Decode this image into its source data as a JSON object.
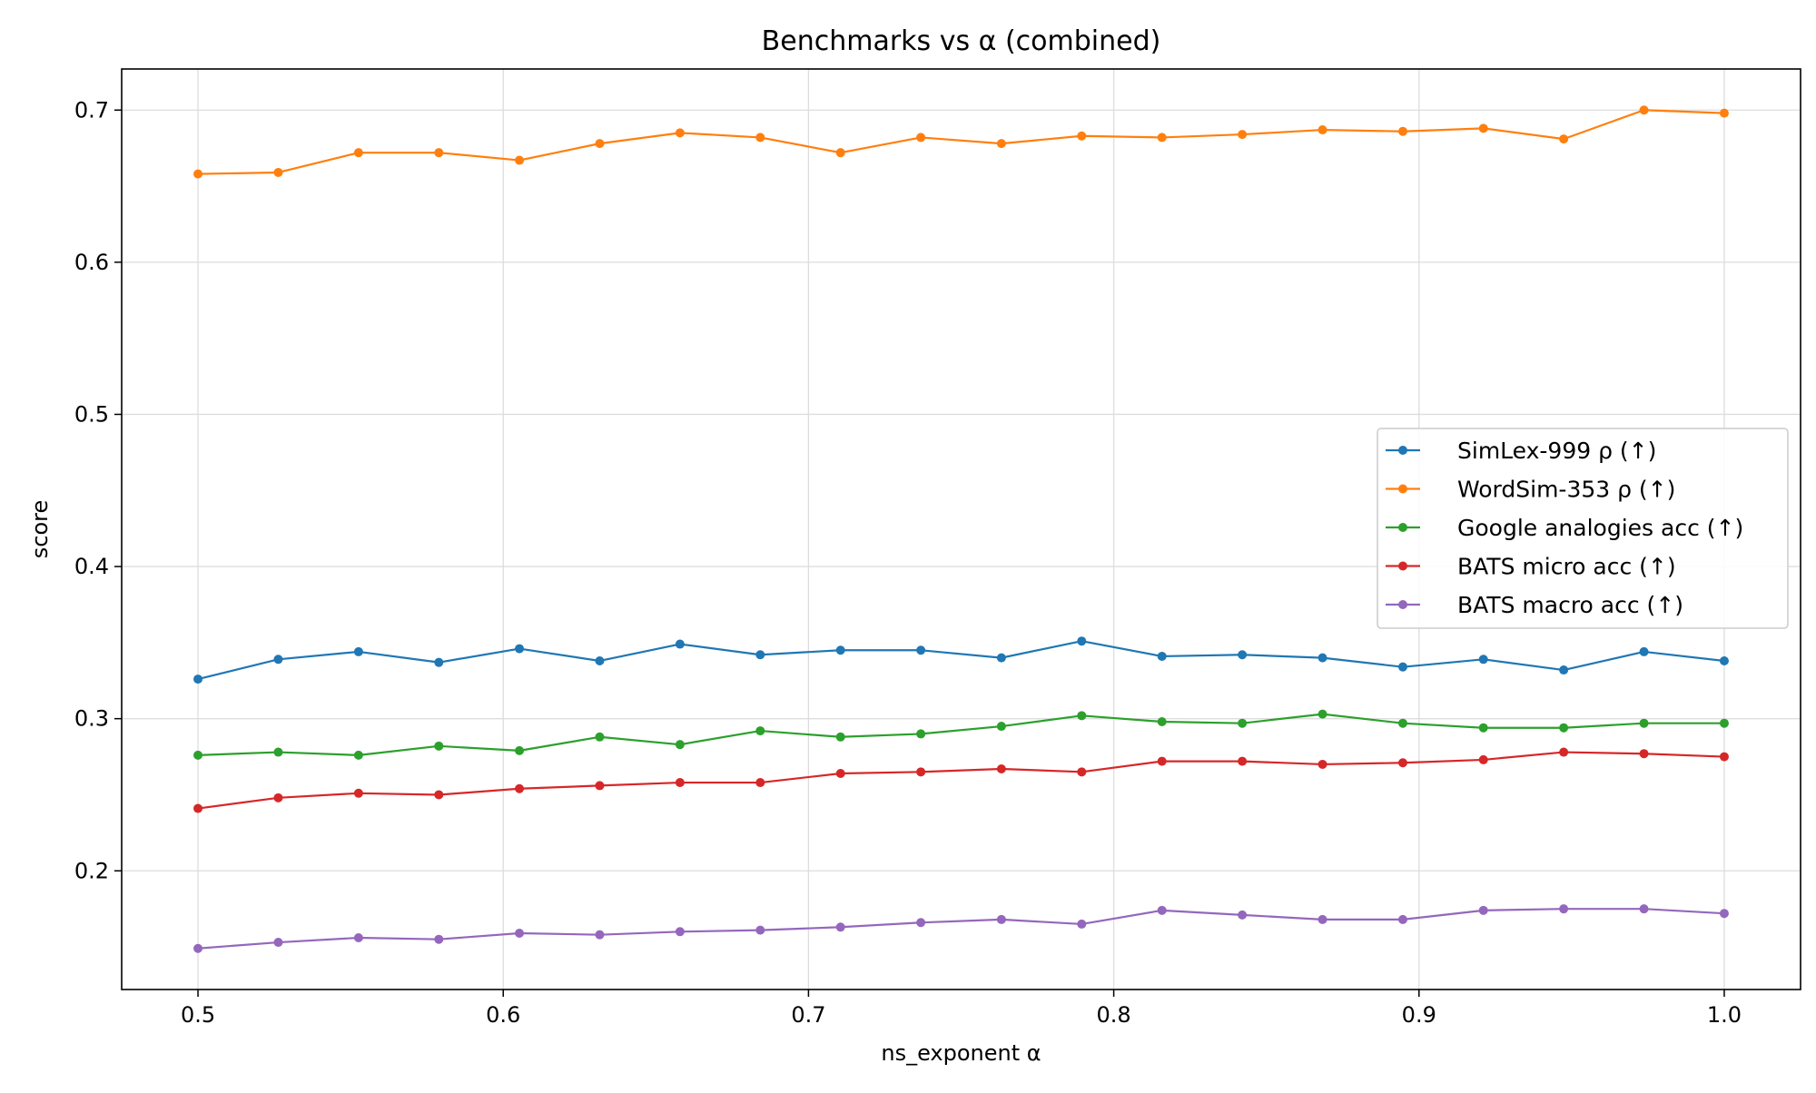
{
  "chart_data": {
    "type": "line",
    "title": "Benchmarks vs α (combined)",
    "xlabel": "ns_exponent α",
    "ylabel": "score",
    "xlim": [
      0.475,
      1.025
    ],
    "ylim": [
      0.122,
      0.727
    ],
    "xticks": [
      0.5,
      0.6,
      0.7,
      0.8,
      0.9,
      1.0
    ],
    "xtick_labels": [
      "0.5",
      "0.6",
      "0.7",
      "0.8",
      "0.9",
      "1.0"
    ],
    "yticks": [
      0.2,
      0.3,
      0.4,
      0.5,
      0.6,
      0.7
    ],
    "ytick_labels": [
      "0.2",
      "0.3",
      "0.4",
      "0.5",
      "0.6",
      "0.7"
    ],
    "grid": true,
    "legend_position": "center-right",
    "x": [
      0.5,
      0.5263,
      0.5526,
      0.5789,
      0.6053,
      0.6316,
      0.6579,
      0.6842,
      0.7105,
      0.7368,
      0.7632,
      0.7895,
      0.8158,
      0.8421,
      0.8684,
      0.8947,
      0.9211,
      0.9474,
      0.9737,
      1.0
    ],
    "series": [
      {
        "name": "SimLex-999 ρ (↑)",
        "color": "#1f77b4",
        "values": [
          0.326,
          0.339,
          0.344,
          0.337,
          0.346,
          0.338,
          0.349,
          0.342,
          0.345,
          0.345,
          0.34,
          0.351,
          0.341,
          0.342,
          0.34,
          0.334,
          0.339,
          0.332,
          0.344,
          0.338
        ]
      },
      {
        "name": "WordSim-353 ρ (↑)",
        "color": "#ff7f0e",
        "values": [
          0.658,
          0.659,
          0.672,
          0.672,
          0.667,
          0.678,
          0.685,
          0.682,
          0.672,
          0.682,
          0.678,
          0.683,
          0.682,
          0.684,
          0.687,
          0.686,
          0.688,
          0.681,
          0.7,
          0.698
        ]
      },
      {
        "name": "Google analogies acc (↑)",
        "color": "#2ca02c",
        "values": [
          0.276,
          0.278,
          0.276,
          0.282,
          0.279,
          0.288,
          0.283,
          0.292,
          0.288,
          0.29,
          0.295,
          0.302,
          0.298,
          0.297,
          0.303,
          0.297,
          0.294,
          0.294,
          0.297,
          0.297
        ]
      },
      {
        "name": "BATS micro acc (↑)",
        "color": "#d62728",
        "values": [
          0.241,
          0.248,
          0.251,
          0.25,
          0.254,
          0.256,
          0.258,
          0.258,
          0.264,
          0.265,
          0.267,
          0.265,
          0.272,
          0.272,
          0.27,
          0.271,
          0.273,
          0.278,
          0.277,
          0.275
        ]
      },
      {
        "name": "BATS macro acc (↑)",
        "color": "#9467bd",
        "values": [
          0.149,
          0.153,
          0.156,
          0.155,
          0.159,
          0.158,
          0.16,
          0.161,
          0.163,
          0.166,
          0.168,
          0.165,
          0.174,
          0.171,
          0.168,
          0.168,
          0.174,
          0.175,
          0.175,
          0.172
        ]
      }
    ]
  }
}
